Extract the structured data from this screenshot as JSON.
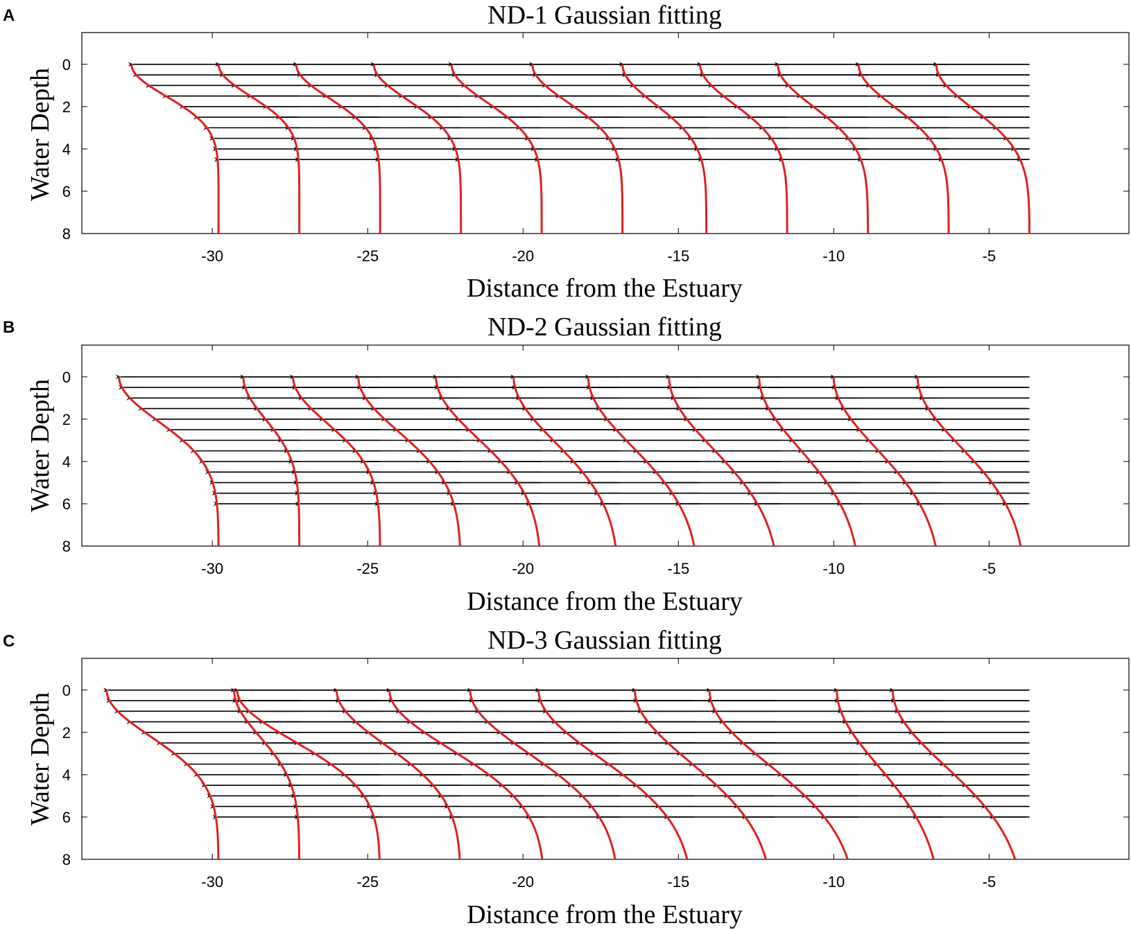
{
  "colors": {
    "fit_curve": "#e02020",
    "arrow": "#000000",
    "axes": "#000000"
  },
  "chart_data": [
    {
      "panel": "A",
      "type": "line",
      "title": "ND-1 Gaussian fitting",
      "xlabel": "Distance from the Estuary",
      "ylabel": "Water Depth",
      "xlim": [
        -34.2,
        -0.5
      ],
      "ylim": [
        8,
        -1.5
      ],
      "xticks": [
        -30,
        -25,
        -20,
        -15,
        -10,
        -5
      ],
      "xtick_labels": [
        "-30",
        "-25",
        "-20",
        "-15",
        "-10",
        "-5"
      ],
      "yticks": [
        0,
        2,
        4,
        6,
        8
      ],
      "ytick_labels": [
        "0",
        "2",
        "4",
        "6",
        "8"
      ],
      "arrow_end": -3.7,
      "arrow_depths": [
        0,
        0.5,
        1,
        1.5,
        2,
        2.5,
        3,
        3.5,
        4,
        4.5
      ],
      "profiles": [
        {
          "base": -29.8,
          "amp": 2.8,
          "sigma": 1.5
        },
        {
          "base": -27.2,
          "amp": 2.6,
          "sigma": 1.5
        },
        {
          "base": -24.6,
          "amp": 2.7,
          "sigma": 1.6
        },
        {
          "base": -22.0,
          "amp": 2.8,
          "sigma": 1.7
        },
        {
          "base": -19.4,
          "amp": 2.9,
          "sigma": 1.8
        },
        {
          "base": -16.8,
          "amp": 2.9,
          "sigma": 1.8
        },
        {
          "base": -14.1,
          "amp": 2.7,
          "sigma": 1.9
        },
        {
          "base": -11.5,
          "amp": 2.8,
          "sigma": 1.9
        },
        {
          "base": -8.9,
          "amp": 2.9,
          "sigma": 2.0
        },
        {
          "base": -6.3,
          "amp": 2.9,
          "sigma": 2.0
        },
        {
          "base": -3.7,
          "amp": 3.0,
          "sigma": 2.1
        }
      ]
    },
    {
      "panel": "B",
      "type": "line",
      "title": "ND-2 Gaussian fitting",
      "xlabel": "Distance from the Estuary",
      "ylabel": "Water Depth",
      "xlim": [
        -34.2,
        -0.5
      ],
      "ylim": [
        8,
        -1.5
      ],
      "xticks": [
        -30,
        -25,
        -20,
        -15,
        -10,
        -5
      ],
      "xtick_labels": [
        "-30",
        "-25",
        "-20",
        "-15",
        "-10",
        "-5"
      ],
      "yticks": [
        0,
        2,
        4,
        6,
        8
      ],
      "ytick_labels": [
        "0",
        "2",
        "4",
        "6",
        "8"
      ],
      "arrow_end": -3.7,
      "arrow_depths": [
        0,
        0.5,
        1,
        1.5,
        2,
        2.5,
        3,
        3.5,
        4,
        4.5,
        5,
        5.5,
        6
      ],
      "profiles": [
        {
          "base": -29.8,
          "amp": 3.2,
          "sigma": 2.1
        },
        {
          "base": -27.2,
          "amp": 1.8,
          "sigma": 2.0
        },
        {
          "base": -24.6,
          "amp": 2.8,
          "sigma": 2.2
        },
        {
          "base": -22.0,
          "amp": 3.3,
          "sigma": 2.6
        },
        {
          "base": -19.4,
          "amp": 3.4,
          "sigma": 2.9
        },
        {
          "base": -16.9,
          "amp": 3.4,
          "sigma": 3.1
        },
        {
          "base": -14.3,
          "amp": 3.6,
          "sigma": 3.3
        },
        {
          "base": -11.7,
          "amp": 3.6,
          "sigma": 3.4
        },
        {
          "base": -9.1,
          "amp": 3.3,
          "sigma": 3.4
        },
        {
          "base": -6.5,
          "amp": 3.5,
          "sigma": 3.4
        },
        {
          "base": -3.8,
          "amp": 3.5,
          "sigma": 3.3
        }
      ]
    },
    {
      "panel": "C",
      "type": "line",
      "title": "ND-3 Gaussian fitting",
      "xlabel": "Distance from the Estuary",
      "ylabel": "Water Depth",
      "xlim": [
        -34.2,
        -0.5
      ],
      "ylim": [
        8,
        -1.5
      ],
      "xticks": [
        -30,
        -25,
        -20,
        -15,
        -10,
        -5
      ],
      "xtick_labels": [
        "-30",
        "-25",
        "-20",
        "-15",
        "-10",
        "-5"
      ],
      "yticks": [
        0,
        2,
        4,
        6,
        8
      ],
      "ytick_labels": [
        "0",
        "2",
        "4",
        "6",
        "8"
      ],
      "arrow_end": -3.7,
      "arrow_depths": [
        0,
        0.5,
        1,
        1.5,
        2,
        2.5,
        3,
        3.5,
        4,
        4.5,
        5,
        5.5,
        6
      ],
      "profiles": [
        {
          "base": -29.8,
          "amp": 3.6,
          "sigma": 2.2
        },
        {
          "base": -27.2,
          "amp": 2.1,
          "sigma": 2.2
        },
        {
          "base": -24.6,
          "amp": 4.6,
          "sigma": 2.4
        },
        {
          "base": -22.0,
          "amp": 4.0,
          "sigma": 2.6
        },
        {
          "base": -19.3,
          "amp": 5.0,
          "sigma": 2.8
        },
        {
          "base": -16.9,
          "amp": 4.8,
          "sigma": 3.0
        },
        {
          "base": -14.5,
          "amp": 5.0,
          "sigma": 3.2
        },
        {
          "base": -11.9,
          "amp": 4.5,
          "sigma": 3.4
        },
        {
          "base": -9.2,
          "amp": 4.8,
          "sigma": 3.5
        },
        {
          "base": -6.5,
          "amp": 3.4,
          "sigma": 3.6
        },
        {
          "base": -3.8,
          "amp": 4.3,
          "sigma": 3.6
        }
      ]
    }
  ]
}
